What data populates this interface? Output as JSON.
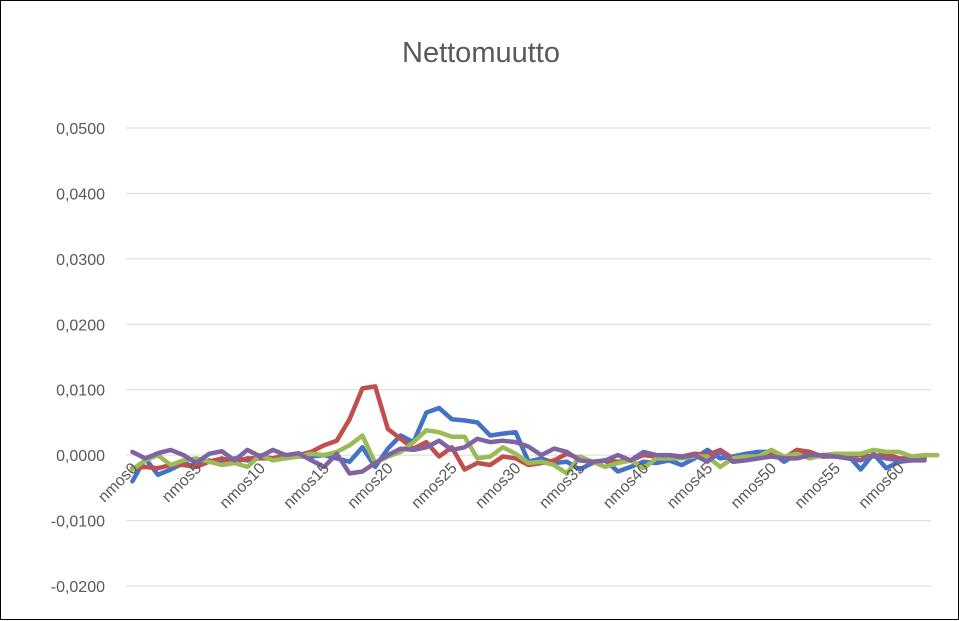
{
  "chart_data": {
    "type": "line",
    "title": "Nettomuutto",
    "xlabel": "",
    "ylabel": "",
    "ylim": [
      -0.02,
      0.05
    ],
    "yticks": [
      "0,0500",
      "0,0400",
      "0,0300",
      "0,0200",
      "0,0100",
      "0,0000",
      "-0,0100",
      "-0,0200"
    ],
    "ytick_values": [
      0.05,
      0.04,
      0.03,
      0.02,
      0.01,
      0.0,
      -0.01,
      -0.02
    ],
    "x_tick_labels": [
      "nmos0",
      "nmos5",
      "nmos10",
      "nmos15",
      "nmos20",
      "nmos25",
      "nmos30",
      "nmos35",
      "nmos40",
      "nmos45",
      "nmos50",
      "nmos55",
      "nmos60"
    ],
    "x_tick_indices": [
      0,
      5,
      10,
      15,
      20,
      25,
      30,
      35,
      40,
      45,
      50,
      55,
      60
    ],
    "grid": true,
    "legend": "none",
    "series": [
      {
        "color": "#4472C4",
        "values": [
          -0.004,
          -0.0005,
          -0.003,
          -0.0022,
          -0.0012,
          -0.0018,
          -0.0008,
          -0.0012,
          -0.0005,
          -0.0008,
          -0.0002,
          -0.0005,
          0.0,
          -0.0002,
          -0.0002,
          0.0,
          -0.0005,
          -0.001,
          0.0012,
          -0.0018,
          0.001,
          0.003,
          0.002,
          0.0065,
          0.0072,
          0.0055,
          0.0053,
          0.005,
          0.003,
          0.0033,
          0.0035,
          -0.001,
          -0.0005,
          -0.0012,
          -0.001,
          -0.0022,
          -0.0012,
          -0.0008,
          -0.0025,
          -0.0018,
          -0.001,
          -0.0012,
          -0.0008,
          -0.0015,
          -0.0005,
          0.0008,
          -0.0005,
          -0.0002,
          0.0002,
          0.0005,
          0.0005,
          -0.001,
          0.0002,
          0.0,
          -0.0002,
          -0.0002,
          0.0,
          -0.0022,
          0.0002,
          -0.002,
          -0.001,
          -0.0008,
          -0.0005
        ]
      },
      {
        "color": "#C0504D",
        "values": [
          -0.002,
          -0.0018,
          -0.002,
          -0.0015,
          -0.0015,
          -0.0018,
          -0.001,
          -0.0005,
          -0.001,
          -0.0005,
          -0.0005,
          -0.0005,
          0.0,
          0.0,
          0.0005,
          0.0015,
          0.0022,
          0.0055,
          0.0102,
          0.0105,
          0.004,
          0.0025,
          0.001,
          0.002,
          -0.0002,
          0.0012,
          -0.0022,
          -0.0012,
          -0.0015,
          -0.0002,
          -0.0005,
          -0.0015,
          -0.0012,
          -0.0008,
          0.0002,
          -0.0005,
          -0.0012,
          -0.0008,
          -0.001,
          -0.0008,
          0.0,
          -0.0002,
          0.0,
          -0.0002,
          0.0002,
          0.0,
          0.0008,
          -0.0005,
          -0.0002,
          -0.0002,
          0.0,
          -0.0005,
          0.0008,
          0.0005,
          -0.0002,
          0.0,
          0.0,
          0.0,
          -0.0002,
          0.0002,
          -0.0005,
          -0.0005,
          -0.0005
        ]
      },
      {
        "color": "#9BBB59",
        "values": [
          -0.0022,
          -0.0008,
          0.0,
          -0.0015,
          -0.0008,
          -0.0005,
          -0.001,
          -0.0015,
          -0.0012,
          -0.0018,
          0.0,
          -0.0008,
          -0.0005,
          -0.0002,
          0.0002,
          0.0,
          0.0005,
          0.0015,
          0.003,
          -0.0012,
          -0.0002,
          0.0005,
          0.002,
          0.0038,
          0.0035,
          0.0028,
          0.0028,
          -0.0005,
          -0.0002,
          0.0012,
          0.0002,
          -0.0012,
          -0.001,
          -0.0015,
          -0.0028,
          -0.0002,
          -0.001,
          -0.0018,
          -0.0012,
          -0.0008,
          -0.002,
          -0.0005,
          -0.0005,
          -0.0005,
          -0.0002,
          -0.0002,
          -0.0018,
          -0.0005,
          -0.0002,
          -0.0002,
          0.0008,
          -0.0002,
          0.0002,
          -0.0005,
          0.0,
          0.0002,
          0.0002,
          0.0002,
          0.0008,
          0.0005,
          0.0005,
          -0.0002,
          0.0,
          0.0
        ]
      },
      {
        "color": "#8064A2",
        "values": [
          0.0005,
          -0.0005,
          0.0003,
          0.0008,
          0.0,
          -0.0012,
          0.0002,
          0.0006,
          -0.0008,
          0.0008,
          -0.0002,
          0.0008,
          0.0,
          0.0003,
          -0.0008,
          -0.0018,
          0.0002,
          -0.0028,
          -0.0025,
          -0.0012,
          0.0,
          0.001,
          0.0008,
          0.0012,
          0.0022,
          0.0008,
          0.0012,
          0.0025,
          0.002,
          0.0022,
          0.002,
          0.0013,
          0.0,
          0.001,
          0.0005,
          -0.0008,
          -0.001,
          -0.0008,
          0.0,
          -0.0008,
          0.0005,
          0.0,
          0.0,
          -0.0003,
          0.0,
          -0.001,
          0.0005,
          -0.001,
          -0.0008,
          -0.0005,
          -0.0002,
          -0.0005,
          -0.0005,
          0.0,
          0.0,
          -0.0002,
          -0.0005,
          -0.0008,
          0.0,
          -0.0005,
          -0.0008,
          -0.0008,
          -0.0008
        ]
      }
    ]
  }
}
